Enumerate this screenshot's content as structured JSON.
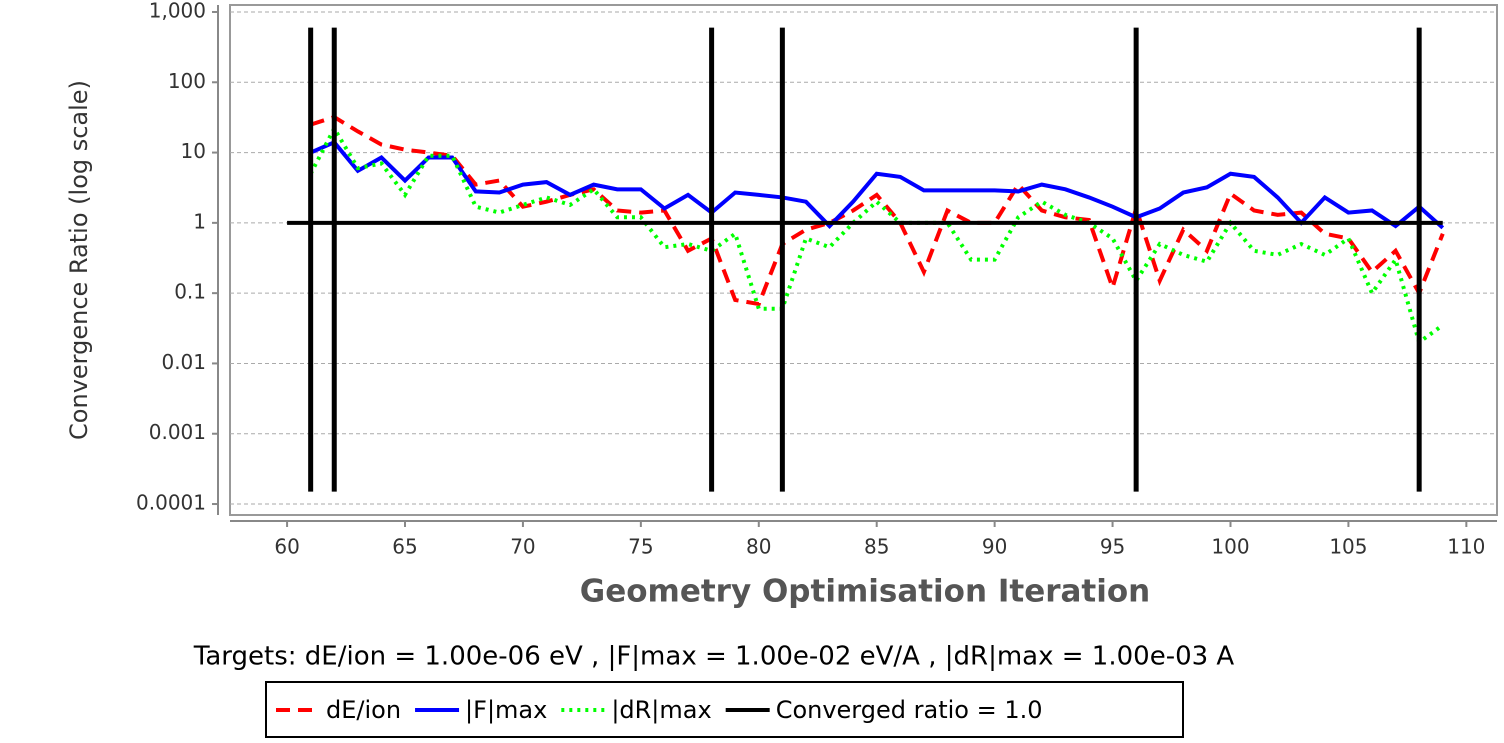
{
  "chart_data": {
    "type": "line",
    "subtitle": "Targets: dE/ion = 1.00e-06 eV ,  |F|max = 1.00e-02 eV/A ,  |dR|max = 1.00e-03 A",
    "xlabel": "Geometry Optimisation Iteration",
    "ylabel": "Convergence Ratio (log scale)",
    "yscale": "log",
    "grid": true,
    "xlim": [
      57.58,
      111.3
    ],
    "ylim": [
      6.98e-05,
      1257
    ],
    "xticks": [
      60,
      65,
      70,
      75,
      80,
      85,
      90,
      95,
      100,
      105,
      110
    ],
    "yticks": [
      {
        "value": 1000,
        "label": "1,000"
      },
      100,
      10,
      1,
      0.1,
      0.01,
      0.001,
      0.0001
    ],
    "series": [
      {
        "name": "dE/ion",
        "color": "#ff0000",
        "dash": "dashed",
        "x": [
          61,
          62,
          63,
          64,
          65,
          66,
          67,
          68,
          69,
          70,
          71,
          72,
          73,
          74,
          75,
          76,
          77,
          78,
          79,
          80,
          81,
          82,
          83,
          84,
          85,
          86,
          87,
          88,
          89,
          90,
          91,
          92,
          93,
          94,
          95,
          96,
          97,
          98,
          99,
          100,
          101,
          102,
          103,
          104,
          105,
          106,
          107,
          108,
          109
        ],
        "values": [
          25,
          32,
          20,
          13,
          11,
          10,
          9,
          3.5,
          4,
          1.7,
          2,
          2.5,
          3,
          1.5,
          1.4,
          1.5,
          0.4,
          0.6,
          0.08,
          0.07,
          0.5,
          0.8,
          1,
          1.5,
          2.5,
          1,
          0.2,
          1.5,
          1,
          1,
          3.5,
          1.5,
          1.2,
          1.1,
          0.12,
          1.6,
          0.15,
          0.8,
          0.4,
          2.6,
          1.5,
          1.3,
          1.4,
          0.7,
          0.6,
          0.2,
          0.4,
          0.1,
          0.7
        ]
      },
      {
        "name": "|F|max",
        "color": "#0000ff",
        "dash": "solid",
        "x": [
          61,
          62,
          63,
          64,
          65,
          66,
          67,
          68,
          69,
          70,
          71,
          72,
          73,
          74,
          75,
          76,
          77,
          78,
          79,
          80,
          81,
          82,
          83,
          84,
          85,
          86,
          87,
          88,
          89,
          90,
          91,
          92,
          93,
          94,
          95,
          96,
          97,
          98,
          99,
          100,
          101,
          102,
          103,
          104,
          105,
          106,
          107,
          108,
          109
        ],
        "values": [
          10,
          14,
          5.5,
          8.5,
          4,
          8.5,
          8.5,
          2.8,
          2.7,
          3.5,
          3.8,
          2.5,
          3.5,
          3,
          3,
          1.6,
          2.5,
          1.4,
          2.7,
          2.5,
          2.3,
          2,
          0.9,
          2,
          5,
          4.5,
          2.9,
          2.9,
          2.9,
          2.9,
          2.8,
          3.5,
          3,
          2.3,
          1.7,
          1.2,
          1.6,
          2.7,
          3.2,
          5,
          4.5,
          2.3,
          1,
          2.3,
          1.4,
          1.5,
          0.9,
          1.7,
          0.85
        ]
      },
      {
        "name": "|dR|max",
        "color": "#00ff00",
        "dash": "dotted",
        "x": [
          61,
          62,
          63,
          64,
          65,
          66,
          67,
          68,
          69,
          70,
          71,
          72,
          73,
          74,
          75,
          76,
          77,
          78,
          79,
          80,
          81,
          82,
          83,
          84,
          85,
          86,
          87,
          88,
          89,
          90,
          91,
          92,
          93,
          94,
          95,
          96,
          97,
          98,
          99,
          100,
          101,
          102,
          103,
          104,
          105,
          106,
          107,
          108,
          109
        ],
        "values": [
          5,
          22,
          6,
          7,
          2.5,
          9,
          9,
          1.7,
          1.4,
          1.8,
          2.3,
          1.8,
          3,
          1.2,
          1.2,
          0.45,
          0.5,
          0.4,
          0.7,
          0.06,
          0.06,
          0.6,
          0.45,
          1,
          2,
          1,
          1,
          1,
          0.3,
          0.3,
          1.2,
          2,
          1.3,
          1,
          0.6,
          0.15,
          0.5,
          0.35,
          0.28,
          1,
          0.4,
          0.35,
          0.5,
          0.35,
          0.6,
          0.1,
          0.3,
          0.02,
          0.035
        ]
      },
      {
        "name": "Converged ratio = 1.0",
        "color": "#000000",
        "dash": "solid",
        "x": [
          60,
          109
        ],
        "values": [
          1,
          1
        ]
      }
    ],
    "vlines": {
      "color": "#000000",
      "x": [
        61,
        62,
        78,
        81,
        96,
        108
      ],
      "ymin": 0.00015,
      "ymax": 600
    }
  }
}
